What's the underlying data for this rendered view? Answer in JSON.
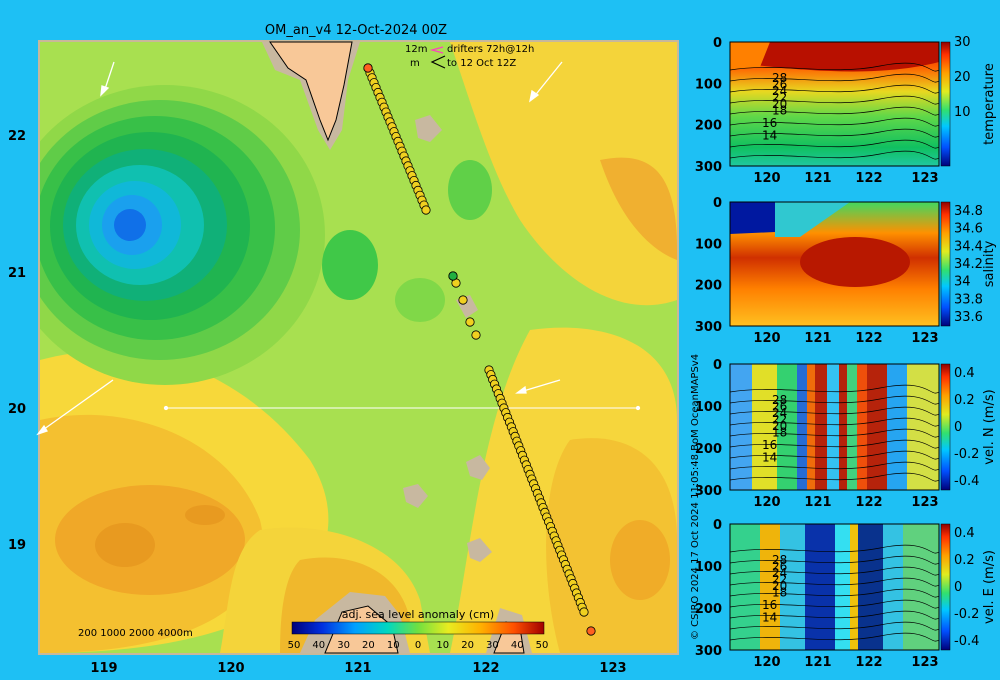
{
  "title": "OM_an_v4  12-Oct-2024 00Z",
  "main_map": {
    "drifter_legend": {
      "line1_a": "12m",
      "line1_b": "drifters 72h@12h",
      "line2_a": "m",
      "line2_b": "to 12 Oct 12Z"
    },
    "x_ticks": [
      "119",
      "120",
      "121",
      "122",
      "123"
    ],
    "y_ticks": [
      "22",
      "21",
      "20",
      "19"
    ],
    "depth_legend": "200  1000  2000  4000m",
    "colorbar": {
      "title": "adj. sea level anomaly (cm)",
      "labels": [
        "50",
        "40",
        "30",
        "20",
        "10",
        "0",
        "10",
        "20",
        "30",
        "40",
        "50"
      ]
    }
  },
  "side_panels": [
    {
      "id": "temperature",
      "axis_label": "temperature",
      "cbar_ticks": [
        "30",
        "20",
        "10"
      ],
      "contour_labels": [
        "28",
        "26",
        "24",
        "22",
        "20",
        "18",
        "16",
        "14"
      ]
    },
    {
      "id": "salinity",
      "axis_label": "salinity",
      "cbar_ticks": [
        "34.8",
        "34.6",
        "34.4",
        "34.2",
        "34",
        "33.8",
        "33.6"
      ],
      "contour_labels": []
    },
    {
      "id": "vel_n",
      "axis_label": "vel. N (m/s)",
      "cbar_ticks": [
        "0.4",
        "0.2",
        "0",
        "-0.2",
        "-0.4"
      ],
      "contour_labels": [
        "28",
        "26",
        "24",
        "22",
        "20",
        "18",
        "16",
        "14"
      ]
    },
    {
      "id": "vel_e",
      "axis_label": "vel. E (m/s)",
      "cbar_ticks": [
        "0.4",
        "0.2",
        "0",
        "-0.2",
        "-0.4"
      ],
      "contour_labels": [
        "28",
        "26",
        "24",
        "22",
        "20",
        "18",
        "16",
        "14"
      ]
    }
  ],
  "side_x_ticks": [
    "120",
    "121",
    "122",
    "123"
  ],
  "side_y_ticks": [
    "0",
    "100",
    "200",
    "300"
  ],
  "credit": "© CSIRO 2024    17 Oct 2024 11:05:48 BoM OceanMAPSv4"
}
